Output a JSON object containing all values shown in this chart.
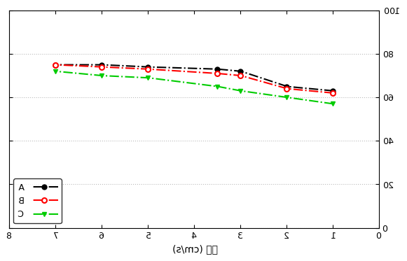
{
  "x_values": [
    1,
    2,
    3,
    3.5,
    5,
    6,
    7
  ],
  "series_A": [
    63,
    65,
    72,
    73,
    74,
    75,
    75
  ],
  "series_B": [
    62,
    64,
    70,
    71,
    73,
    74,
    75
  ],
  "series_C": [
    57,
    60,
    63,
    65,
    69,
    70,
    72
  ],
  "color_A": "#000000",
  "color_B": "#ff0000",
  "color_C": "#00cc00",
  "xlabel": "속도 (cm/s)",
  "xlim": [
    0,
    8
  ],
  "ylim": [
    0,
    100
  ],
  "yticks": [
    0,
    20,
    40,
    60,
    80,
    100
  ],
  "xticks": [
    0,
    1,
    2,
    3,
    4,
    5,
    6,
    7,
    8
  ],
  "xtick_labels": [
    "0",
    "1",
    "2",
    "3",
    "4",
    "5",
    "6",
    "7",
    "8"
  ],
  "legend_labels": [
    "A",
    "B",
    "C"
  ],
  "legend_loc": "lower right",
  "bg_color": "#ffffff",
  "grid_color": "#aaaaaa"
}
